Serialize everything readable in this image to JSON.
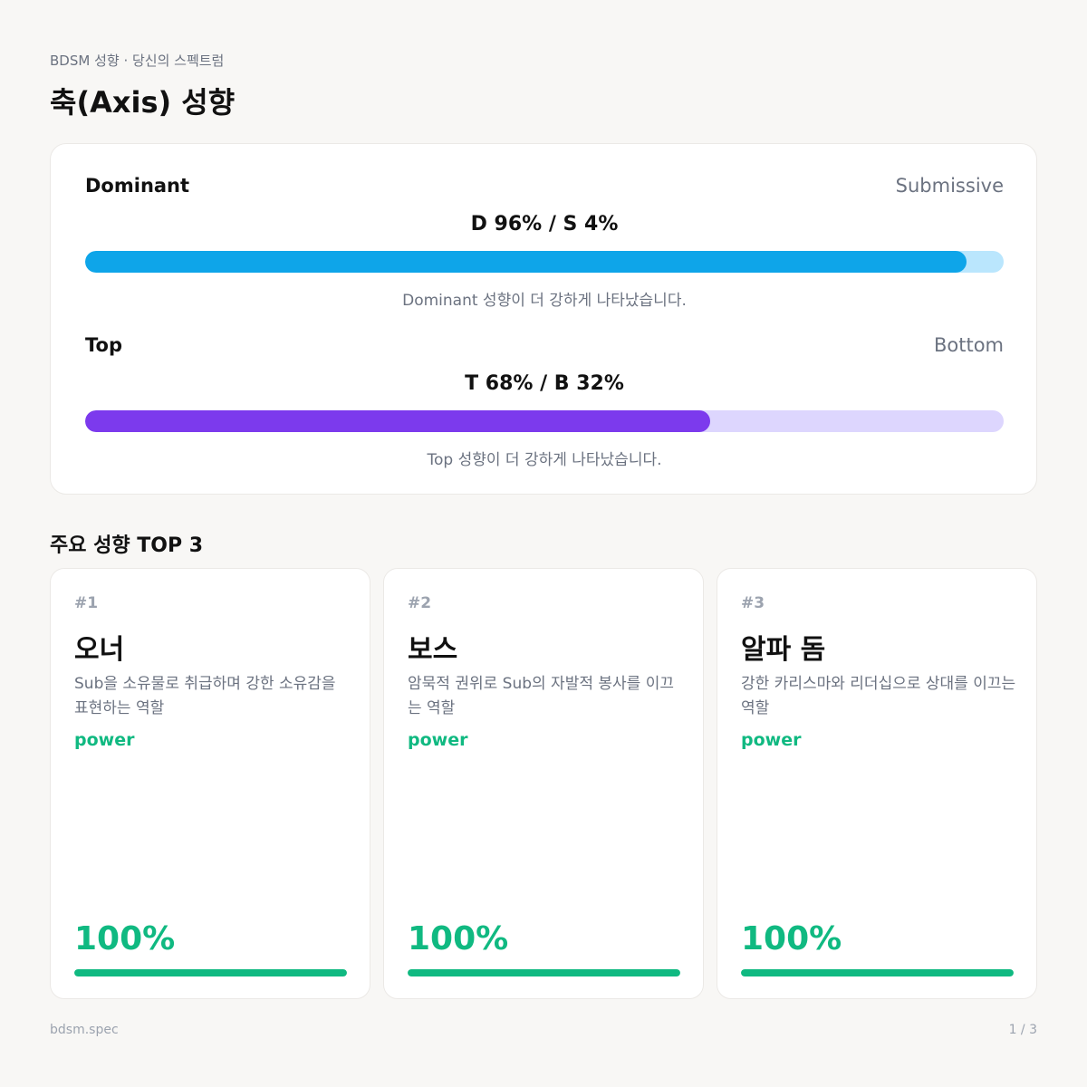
{
  "header": {
    "subtitle": "BDSM 성향 · 당신의 스펙트럼",
    "title": "축(Axis) 성향"
  },
  "axes": [
    {
      "left_label": "Dominant",
      "right_label": "Submissive",
      "ratio_text": "D 96% / S 4%",
      "left_percent": 96,
      "note": "Dominant 성향이 더 강하게 나타났습니다.",
      "fill_color": "#0ea5e9",
      "track_color": "#bae6fd"
    },
    {
      "left_label": "Top",
      "right_label": "Bottom",
      "ratio_text": "T 68% / B 32%",
      "left_percent": 68,
      "note": "Top 성향이 더 강하게 나타났습니다.",
      "fill_color": "#7c3aed",
      "track_color": "#ddd6fe"
    }
  ],
  "top3": {
    "section_title": "주요 성향 TOP 3",
    "cards": [
      {
        "rank": "#1",
        "name": "오너",
        "desc": "Sub을 소유물로 취급하며 강한 소유감을 표현하는 역할",
        "tag": "power",
        "percent_text": "100%",
        "percent": 100
      },
      {
        "rank": "#2",
        "name": "보스",
        "desc": "암묵적 권위로 Sub의 자발적 봉사를 이끄는 역할",
        "tag": "power",
        "percent_text": "100%",
        "percent": 100
      },
      {
        "rank": "#3",
        "name": "알파 돔",
        "desc": "강한 카리스마와 리더십으로 상대를 이끄는 역할",
        "tag": "power",
        "percent_text": "100%",
        "percent": 100
      }
    ]
  },
  "footer": {
    "brand": "bdsm.spec",
    "page": "1 / 3"
  }
}
